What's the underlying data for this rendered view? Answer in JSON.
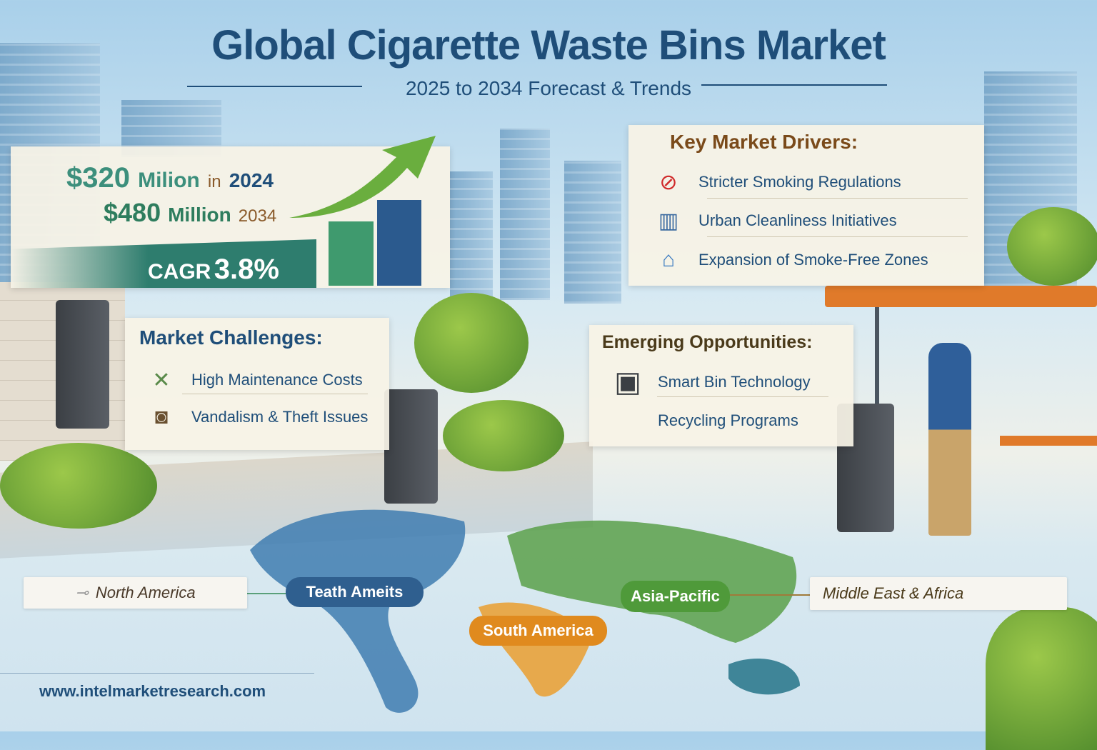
{
  "header": {
    "title": "Global Cigarette Waste Bins Market",
    "subtitle": "2025 to 2034 Forecast & Trends"
  },
  "market_size": {
    "value_2024": "$320",
    "unit_2024": "Milion",
    "in_label": "in",
    "year_2024": "2024",
    "value_2034": "$480",
    "unit_2034": "Million",
    "year_2034": "2034",
    "cagr_label": "CAGR",
    "cagr_value": "3.8%"
  },
  "challenges": {
    "heading": "Market Challenges:",
    "items": [
      {
        "label": "High Maintenance Costs",
        "icon": "wrench-icon"
      },
      {
        "label": "Vandalism & Theft Issues",
        "icon": "bucket-icon"
      }
    ]
  },
  "drivers": {
    "heading": "Key Market Drivers:",
    "items": [
      {
        "label": "Stricter Smoking Regulations",
        "icon": "no-smoking-icon"
      },
      {
        "label": "Urban Cleanliness Initiatives",
        "icon": "city-icon"
      },
      {
        "label": "Expansion of Smoke-Free Zones",
        "icon": "building-trees-icon"
      }
    ]
  },
  "opportunities": {
    "heading": "Emerging Opportunities:",
    "items": [
      {
        "label": "Smart Bin Technology",
        "icon": "smart-bin-icon"
      },
      {
        "label": "Recycling Programs",
        "icon": "recycling-icon"
      }
    ]
  },
  "regions": [
    {
      "label": "North America",
      "color": "#ffffff"
    },
    {
      "label": "Teath Ameits",
      "color": "#2f5f8f"
    },
    {
      "label": "South America",
      "color": "#e08a1e"
    },
    {
      "label": "Asia-Pacific",
      "color": "#4f9a3a"
    },
    {
      "label": "Middle East & Africa",
      "color": "#ffffff"
    }
  ],
  "footer": {
    "url": "www.intelmarketresearch.com"
  },
  "colors": {
    "navy": "#1f4e79",
    "teal": "#2e7d6e",
    "green": "#6aae3e"
  }
}
